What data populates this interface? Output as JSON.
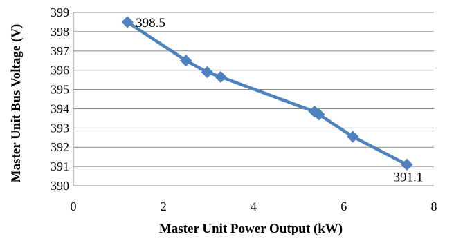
{
  "chart_data": {
    "type": "scatter",
    "xlabel": "Master Unit Power Output (kW)",
    "ylabel": "Master Unit Bus Voltage (V)",
    "xlim": [
      0,
      8
    ],
    "ylim": [
      390,
      399
    ],
    "x_ticks": [
      "0",
      "2",
      "4",
      "6",
      "8"
    ],
    "y_ticks": [
      "390",
      "391",
      "392",
      "393",
      "394",
      "395",
      "396",
      "397",
      "398",
      "399"
    ],
    "grid": "horizontal",
    "series": [
      {
        "color": "#4F81BD",
        "marker": "diamond",
        "points": [
          {
            "x": 1.2,
            "y": 398.5
          },
          {
            "x": 2.5,
            "y": 396.5
          },
          {
            "x": 2.97,
            "y": 395.9
          },
          {
            "x": 3.27,
            "y": 395.65
          },
          {
            "x": 5.35,
            "y": 393.85
          },
          {
            "x": 5.45,
            "y": 393.7
          },
          {
            "x": 6.2,
            "y": 392.55
          },
          {
            "x": 7.4,
            "y": 391.1
          }
        ]
      }
    ],
    "annotations": [
      {
        "text": "398.5",
        "point_index": 0,
        "placement": "right"
      },
      {
        "text": "391.1",
        "point_index": 7,
        "placement": "below"
      }
    ]
  }
}
